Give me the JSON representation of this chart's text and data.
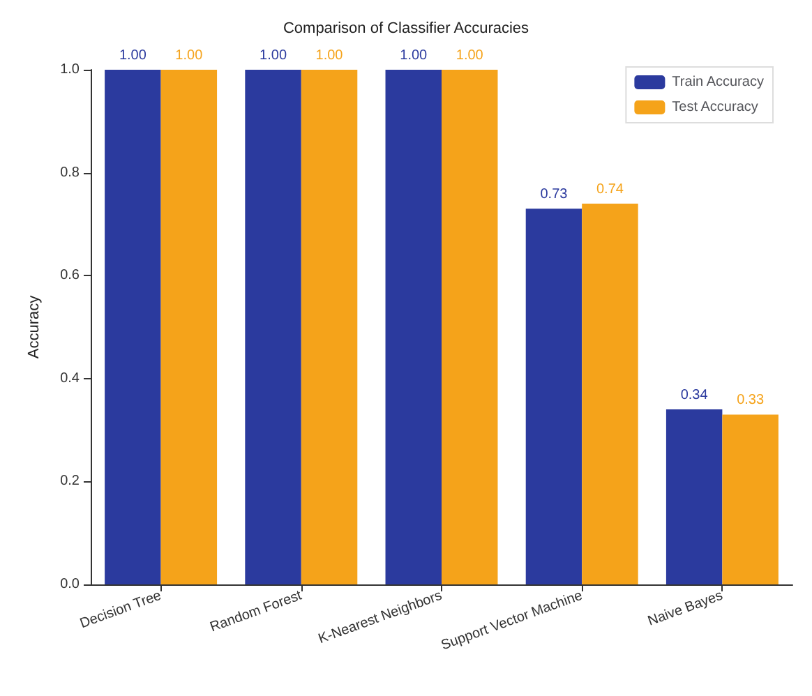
{
  "chart_data": {
    "type": "bar",
    "title": "Comparison of Classifier Accuracies",
    "ylabel": "Accuracy",
    "categories": [
      "Decision Tree",
      "Random Forest",
      "K-Nearest Neighbors",
      "Support Vector Machine",
      "Naive Bayes"
    ],
    "series": [
      {
        "name": "Train Accuracy",
        "color": "#2b3a9e",
        "values": [
          1.0,
          1.0,
          1.0,
          0.73,
          0.34
        ],
        "value_labels": [
          "1.00",
          "1.00",
          "1.00",
          "0.73",
          "0.34"
        ]
      },
      {
        "name": "Test Accuracy",
        "color": "#f5a31a",
        "values": [
          1.0,
          1.0,
          1.0,
          0.74,
          0.33
        ],
        "value_labels": [
          "1.00",
          "1.00",
          "1.00",
          "0.74",
          "0.33"
        ]
      }
    ],
    "ylim": [
      0,
      1.0
    ],
    "yticks": [
      {
        "value": 0,
        "label": "0.0"
      },
      {
        "value": 0.2,
        "label": "0.2"
      },
      {
        "value": 0.4,
        "label": "0.4"
      },
      {
        "value": 0.6,
        "label": "0.6"
      },
      {
        "value": 0.8,
        "label": "0.8"
      },
      {
        "value": 1.0,
        "label": "1.0"
      }
    ],
    "grid": false,
    "legend": "top right"
  }
}
